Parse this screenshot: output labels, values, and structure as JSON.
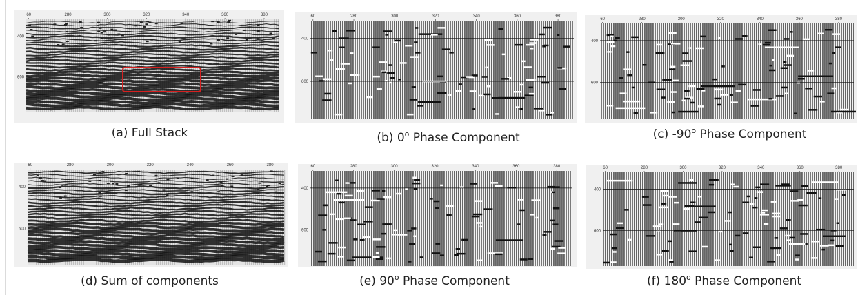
{
  "panels": [
    {
      "caption": {
        "prefix": "(a) Full Stack",
        "sup": null,
        "suffix": null
      },
      "x_ticks": [
        "60",
        "280",
        "300",
        "320",
        "340",
        "360",
        "380"
      ],
      "y_ticks": [
        "400",
        "600"
      ]
    },
    {
      "caption": {
        "prefix": "(b) 0",
        "sup": "o",
        "suffix": " Phase Component"
      },
      "x_ticks": [
        "60",
        "280",
        "300",
        "320",
        "340",
        "360",
        "380"
      ],
      "y_ticks": [
        "400",
        "600"
      ]
    },
    {
      "caption": {
        "prefix": "(c) -90",
        "sup": "o",
        "suffix": " Phase Component"
      },
      "x_ticks": [
        "60",
        "280",
        "300",
        "320",
        "340",
        "360",
        "380"
      ],
      "y_ticks": [
        "400",
        "600"
      ]
    },
    {
      "caption": {
        "prefix": "(d) Sum of components",
        "sup": null,
        "suffix": null
      },
      "x_ticks": [
        "60",
        "280",
        "300",
        "320",
        "340",
        "360",
        "380"
      ],
      "y_ticks": [
        "400",
        "600"
      ]
    },
    {
      "caption": {
        "prefix": "(e) 90",
        "sup": "o",
        "suffix": " Phase Component"
      },
      "x_ticks": [
        "60",
        "280",
        "300",
        "320",
        "340",
        "360",
        "380"
      ],
      "y_ticks": [
        "400",
        "600"
      ]
    },
    {
      "caption": {
        "prefix": "(f) 180",
        "sup": "o",
        "suffix": " Phase Component"
      },
      "x_ticks": [
        "60",
        "280",
        "300",
        "320",
        "340",
        "360",
        "380"
      ],
      "y_ticks": [
        "400",
        "600"
      ]
    }
  ]
}
